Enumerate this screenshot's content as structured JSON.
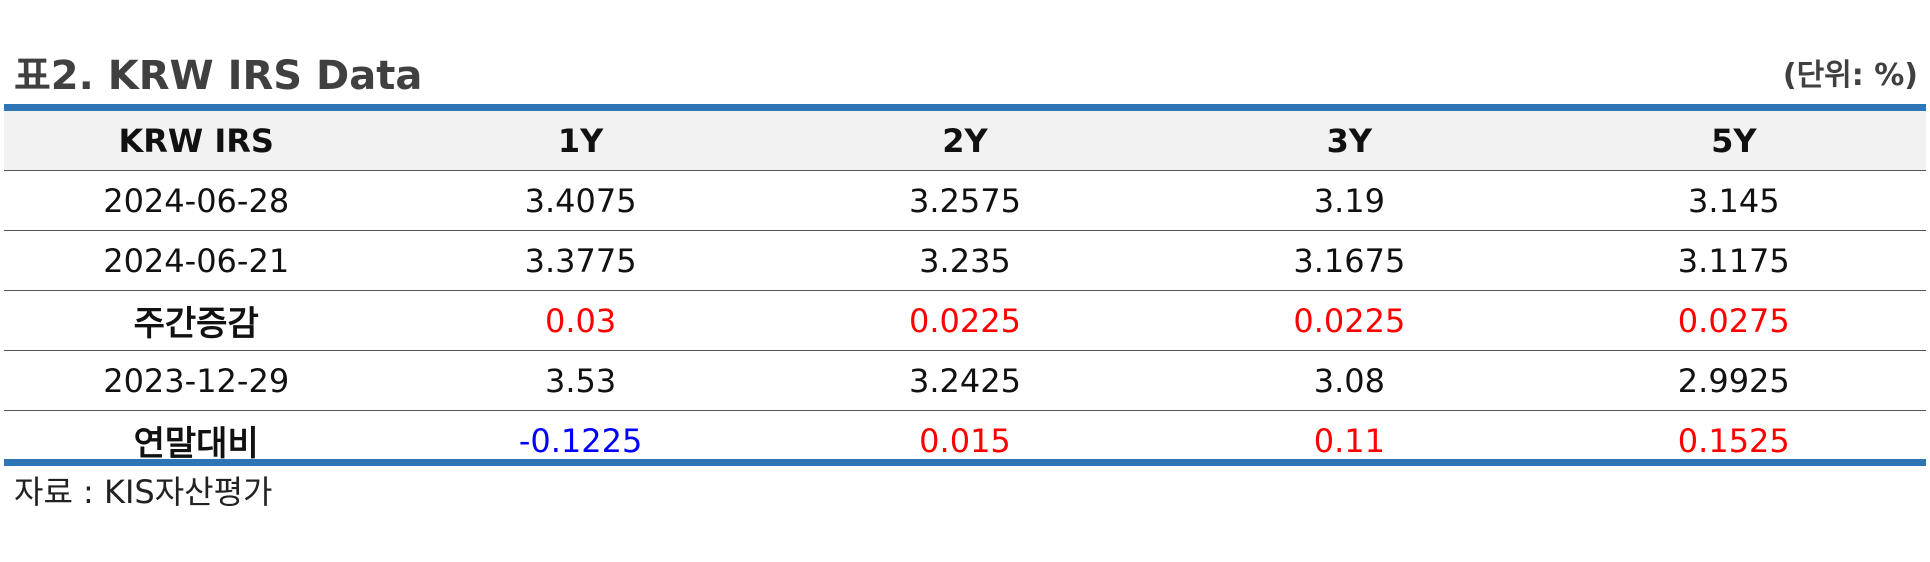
{
  "title": "표2. KRW IRS Data",
  "unit": "(단위: %)",
  "colors": {
    "accent_rule": "#2e75b6",
    "header_bg": "#f2f2f2",
    "positive": "#ff0000",
    "negative": "#0000ff",
    "text": "#111111"
  },
  "table": {
    "headers": [
      "KRW IRS",
      "1Y",
      "2Y",
      "3Y",
      "5Y"
    ],
    "rows": [
      {
        "label": "2024-06-28",
        "bold": false,
        "values": [
          "3.4075",
          "3.2575",
          "3.19",
          "3.145"
        ],
        "colors": [
          "",
          "",
          "",
          ""
        ]
      },
      {
        "label": "2024-06-21",
        "bold": false,
        "values": [
          "3.3775",
          "3.235",
          "3.1675",
          "3.1175"
        ],
        "colors": [
          "",
          "",
          "",
          ""
        ]
      },
      {
        "label": "주간증감",
        "bold": true,
        "values": [
          "0.03",
          "0.0225",
          "0.0225",
          "0.0275"
        ],
        "colors": [
          "#ff0000",
          "#ff0000",
          "#ff0000",
          "#ff0000"
        ]
      },
      {
        "label": "2023-12-29",
        "bold": false,
        "values": [
          "3.53",
          "3.2425",
          "3.08",
          "2.9925"
        ],
        "colors": [
          "",
          "",
          "",
          ""
        ]
      },
      {
        "label": "연말대비",
        "bold": true,
        "values": [
          "-0.1225",
          "0.015",
          "0.11",
          "0.1525"
        ],
        "colors": [
          "#0000ff",
          "#ff0000",
          "#ff0000",
          "#ff0000"
        ]
      }
    ]
  },
  "source": "자료 : KIS자산평가"
}
